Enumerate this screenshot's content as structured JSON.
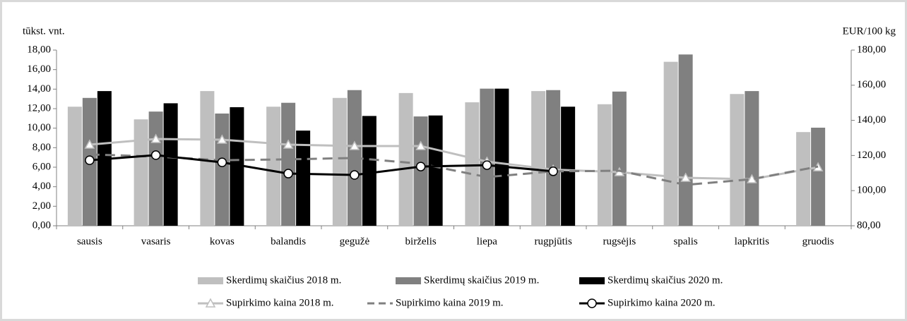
{
  "chart_data": {
    "type": "combo",
    "ylabel": "tūkst. vnt.",
    "y2label": "EUR/100 kg",
    "categories": [
      "sausis",
      "vasaris",
      "kovas",
      "balandis",
      "gegužė",
      "birželis",
      "liepa",
      "rugpjūtis",
      "rugsėjis",
      "spalis",
      "lapkritis",
      "gruodis"
    ],
    "ylim": [
      0,
      18
    ],
    "yticks": [
      {
        "value": 0,
        "label": "0,00"
      },
      {
        "value": 2,
        "label": "2,00"
      },
      {
        "value": 4,
        "label": "4,00"
      },
      {
        "value": 6,
        "label": "6,00"
      },
      {
        "value": 8,
        "label": "8,00"
      },
      {
        "value": 10,
        "label": "10,00"
      },
      {
        "value": 12,
        "label": "12,00"
      },
      {
        "value": 14,
        "label": "14,00"
      },
      {
        "value": 16,
        "label": "16,00"
      },
      {
        "value": 18,
        "label": "18,00"
      }
    ],
    "y2lim": [
      80,
      180
    ],
    "y2ticks": [
      {
        "value": 80,
        "label": "80,00"
      },
      {
        "value": 100,
        "label": "100,00"
      },
      {
        "value": 120,
        "label": "120,00"
      },
      {
        "value": 140,
        "label": "140,00"
      },
      {
        "value": 160,
        "label": "160,00"
      },
      {
        "value": 180,
        "label": "180,00"
      }
    ],
    "series": [
      {
        "name": "Skerdimų skaičius 2018 m.",
        "type": "bar",
        "color": "#bfbfbf",
        "values": [
          12.2,
          10.9,
          13.8,
          12.2,
          13.1,
          13.6,
          12.65,
          13.8,
          12.45,
          16.8,
          13.5,
          9.6
        ]
      },
      {
        "name": "Skerdimų skaičius 2019 m.",
        "type": "bar",
        "color": "#808080",
        "values": [
          13.1,
          11.7,
          11.5,
          12.6,
          13.9,
          11.2,
          14.05,
          13.9,
          13.75,
          17.55,
          13.8,
          10.05
        ]
      },
      {
        "name": "Skerdimų skaičius 2020 m.",
        "type": "bar",
        "color": "#000000",
        "values": [
          13.8,
          12.55,
          12.15,
          9.75,
          11.25,
          11.3,
          14.05,
          12.2,
          null,
          null,
          null,
          null
        ]
      },
      {
        "name": "Supirkimo kaina 2018 m.",
        "type": "line",
        "axis": "y2",
        "color": "#bfbfbf",
        "marker": "triangle",
        "values": [
          126.2,
          129.4,
          129,
          126.2,
          125.4,
          125.4,
          116.5,
          112,
          110.5,
          107.3,
          106.5,
          113.3
        ]
      },
      {
        "name": "Supirkimo kaina 2019 m.",
        "type": "line",
        "axis": "y2",
        "color": "#808080",
        "dashed": true,
        "values": [
          120.6,
          119.4,
          117.3,
          117.8,
          118.6,
          115.3,
          107.7,
          111,
          111.3,
          103.3,
          106.5,
          113.7
        ]
      },
      {
        "name": "Supirkimo kaina 2020 m.",
        "type": "line",
        "axis": "y2",
        "color": "#000000",
        "marker": "circle",
        "values": [
          117.3,
          120.2,
          116.1,
          109.7,
          108.9,
          113.7,
          114.5,
          111,
          null,
          null,
          null,
          null
        ]
      }
    ]
  }
}
